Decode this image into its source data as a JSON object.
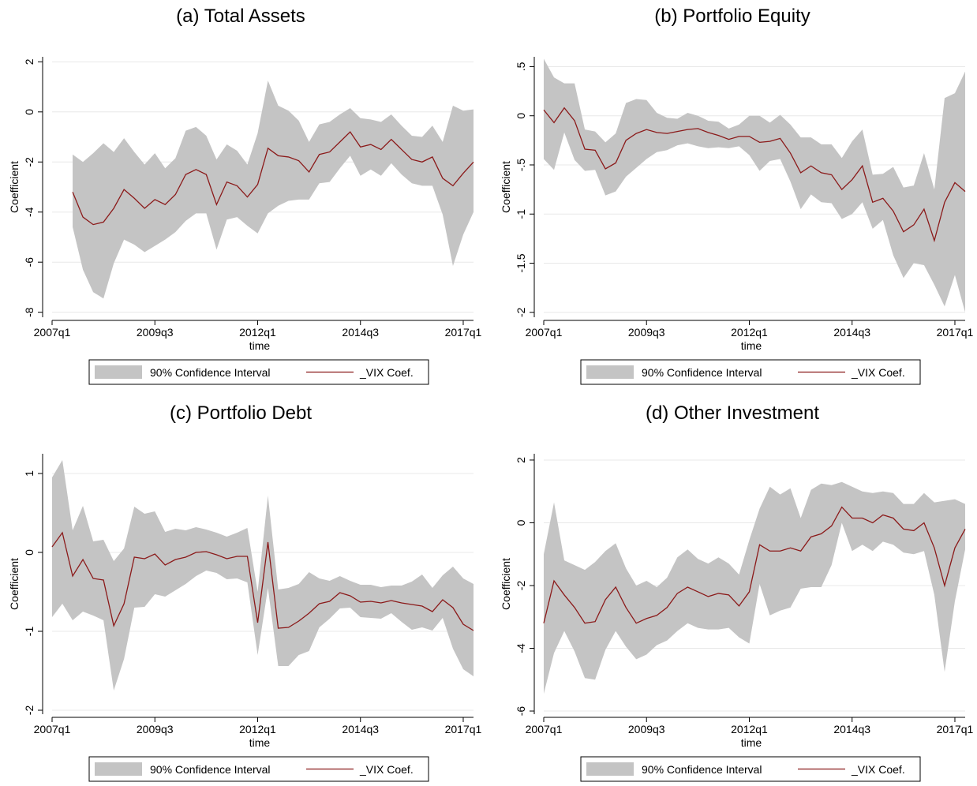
{
  "chart_data": [
    {
      "type": "line",
      "title": "(a) Total Assets",
      "x_label": "time",
      "y_label": "Coefficient",
      "x": [
        "2007q3",
        "2007q4",
        "2008q1",
        "2008q2",
        "2008q3",
        "2008q4",
        "2009q1",
        "2009q2",
        "2009q3",
        "2009q4",
        "2010q1",
        "2010q2",
        "2010q3",
        "2010q4",
        "2011q1",
        "2011q2",
        "2011q3",
        "2011q4",
        "2012q1",
        "2012q2",
        "2012q3",
        "2012q4",
        "2013q1",
        "2013q2",
        "2013q3",
        "2013q4",
        "2014q1",
        "2014q2",
        "2014q3",
        "2014q4",
        "2015q1",
        "2015q2",
        "2015q3",
        "2015q4",
        "2016q1",
        "2016q2",
        "2016q3",
        "2016q4",
        "2017q1",
        "2017q2"
      ],
      "xlim": [
        "2007q1",
        "2017q2"
      ],
      "xticks": [
        "2007q1",
        "2009q3",
        "2012q1",
        "2014q3",
        "2017q1"
      ],
      "ylim": [
        -8.2,
        2.2
      ],
      "yticks": [
        -8,
        -6,
        -4,
        -2,
        0,
        2
      ],
      "grid": true,
      "series": [
        {
          "name": "90% Confidence Interval",
          "color": "#c4c4c4",
          "upper": [
            -1.7,
            -2.0,
            -1.65,
            -1.25,
            -1.6,
            -1.05,
            -1.6,
            -2.1,
            -1.65,
            -2.25,
            -1.85,
            -0.75,
            -0.6,
            -0.95,
            -1.9,
            -1.3,
            -1.55,
            -2.1,
            -0.85,
            1.25,
            0.25,
            0.05,
            -0.35,
            -1.2,
            -0.5,
            -0.4,
            -0.1,
            0.15,
            -0.25,
            -0.3,
            -0.4,
            -0.1,
            -0.55,
            -0.95,
            -1.0,
            -0.55,
            -1.2,
            0.25,
            0.05,
            0.1
          ],
          "lower": [
            -4.6,
            -6.3,
            -7.2,
            -7.45,
            -6.05,
            -5.1,
            -5.3,
            -5.6,
            -5.35,
            -5.1,
            -4.8,
            -4.35,
            -4.05,
            -4.05,
            -5.5,
            -4.3,
            -4.2,
            -4.55,
            -4.85,
            -4.05,
            -3.75,
            -3.55,
            -3.5,
            -3.5,
            -2.85,
            -2.8,
            -2.25,
            -1.75,
            -2.55,
            -2.3,
            -2.55,
            -2.05,
            -2.5,
            -2.85,
            -2.95,
            -2.95,
            -4.1,
            -6.15,
            -4.9,
            -4.0
          ]
        },
        {
          "name": "_VIX Coef.",
          "color": "#8b1a1a",
          "values": [
            -3.2,
            -4.2,
            -4.5,
            -4.4,
            -3.85,
            -3.1,
            -3.45,
            -3.85,
            -3.5,
            -3.7,
            -3.3,
            -2.5,
            -2.3,
            -2.5,
            -3.7,
            -2.8,
            -2.95,
            -3.4,
            -2.9,
            -1.45,
            -1.75,
            -1.8,
            -1.95,
            -2.4,
            -1.7,
            -1.6,
            -1.2,
            -0.8,
            -1.4,
            -1.3,
            -1.5,
            -1.1,
            -1.5,
            -1.9,
            -2.0,
            -1.8,
            -2.65,
            -2.95,
            -2.45,
            -2.0
          ]
        }
      ]
    },
    {
      "type": "line",
      "title": "(b) Portfolio Equity",
      "x_label": "time",
      "y_label": "Coefficient",
      "x": [
        "2007q1",
        "2007q2",
        "2007q3",
        "2007q4",
        "2008q1",
        "2008q2",
        "2008q3",
        "2008q4",
        "2009q1",
        "2009q2",
        "2009q3",
        "2009q4",
        "2010q1",
        "2010q2",
        "2010q3",
        "2010q4",
        "2011q1",
        "2011q2",
        "2011q3",
        "2011q4",
        "2012q1",
        "2012q2",
        "2012q3",
        "2012q4",
        "2013q1",
        "2013q2",
        "2013q3",
        "2013q4",
        "2014q1",
        "2014q2",
        "2014q3",
        "2014q4",
        "2015q1",
        "2015q2",
        "2015q3",
        "2015q4",
        "2016q1",
        "2016q2",
        "2016q3",
        "2016q4",
        "2017q1",
        "2017q2"
      ],
      "xlim": [
        "2007q1",
        "2017q2"
      ],
      "xticks": [
        "2007q1",
        "2009q3",
        "2012q1",
        "2014q3",
        "2017q1"
      ],
      "ylim": [
        -2.05,
        0.6
      ],
      "yticks": [
        -2,
        -1.5,
        -1,
        {
          "value": -0.5,
          "label": "-.5"
        },
        0,
        {
          "value": 0.5,
          "label": ".5"
        }
      ],
      "grid": true,
      "series": [
        {
          "name": "90% Confidence Interval",
          "color": "#c4c4c4",
          "upper": [
            0.58,
            0.39,
            0.33,
            0.33,
            -0.14,
            -0.16,
            -0.27,
            -0.18,
            0.13,
            0.17,
            0.16,
            0.03,
            -0.02,
            -0.03,
            0.03,
            0.0,
            -0.05,
            -0.06,
            -0.13,
            -0.09,
            0.0,
            0.0,
            -0.07,
            0.01,
            -0.09,
            -0.22,
            -0.22,
            -0.29,
            -0.29,
            -0.43,
            -0.26,
            -0.14,
            -0.6,
            -0.59,
            -0.52,
            -0.73,
            -0.71,
            -0.38,
            -0.75,
            0.18,
            0.23,
            0.45
          ],
          "lower": [
            -0.44,
            -0.55,
            -0.17,
            -0.45,
            -0.56,
            -0.55,
            -0.81,
            -0.77,
            -0.62,
            -0.53,
            -0.44,
            -0.37,
            -0.35,
            -0.3,
            -0.28,
            -0.31,
            -0.33,
            -0.32,
            -0.33,
            -0.31,
            -0.4,
            -0.56,
            -0.46,
            -0.44,
            -0.67,
            -0.95,
            -0.8,
            -0.88,
            -0.89,
            -1.05,
            -1.0,
            -0.88,
            -1.15,
            -1.06,
            -1.42,
            -1.65,
            -1.5,
            -1.52,
            -1.72,
            -1.94,
            -1.62,
            -2.0
          ]
        },
        {
          "name": "_VIX Coef.",
          "color": "#8b1a1a",
          "values": [
            0.06,
            -0.07,
            0.08,
            -0.05,
            -0.34,
            -0.35,
            -0.54,
            -0.48,
            -0.25,
            -0.18,
            -0.14,
            -0.17,
            -0.18,
            -0.16,
            -0.14,
            -0.13,
            -0.17,
            -0.2,
            -0.24,
            -0.21,
            -0.21,
            -0.27,
            -0.26,
            -0.23,
            -0.38,
            -0.58,
            -0.51,
            -0.58,
            -0.6,
            -0.75,
            -0.65,
            -0.51,
            -0.88,
            -0.84,
            -0.97,
            -1.18,
            -1.11,
            -0.95,
            -1.27,
            -0.88,
            -0.68,
            -0.77
          ]
        }
      ]
    },
    {
      "type": "line",
      "title": "(c) Portfolio Debt",
      "x_label": "time",
      "y_label": "Coefficient",
      "x": [
        "2007q1",
        "2007q2",
        "2007q3",
        "2007q4",
        "2008q1",
        "2008q2",
        "2008q3",
        "2008q4",
        "2009q1",
        "2009q2",
        "2009q3",
        "2009q4",
        "2010q1",
        "2010q2",
        "2010q3",
        "2010q4",
        "2011q1",
        "2011q2",
        "2011q3",
        "2011q4",
        "2012q1",
        "2012q2",
        "2012q3",
        "2012q4",
        "2013q1",
        "2013q2",
        "2013q3",
        "2013q4",
        "2014q1",
        "2014q2",
        "2014q3",
        "2014q4",
        "2015q1",
        "2015q2",
        "2015q3",
        "2015q4",
        "2016q1",
        "2016q2",
        "2016q3",
        "2016q4",
        "2017q1",
        "2017q2"
      ],
      "xlim": [
        "2007q1",
        "2017q2"
      ],
      "xticks": [
        "2007q1",
        "2009q3",
        "2012q1",
        "2014q3",
        "2017q1"
      ],
      "ylim": [
        -2.05,
        1.25
      ],
      "yticks": [
        -2,
        -1,
        0,
        1
      ],
      "grid": true,
      "series": [
        {
          "name": "90% Confidence Interval",
          "color": "#c4c4c4",
          "upper": [
            0.95,
            1.17,
            0.28,
            0.59,
            0.14,
            0.16,
            -0.11,
            0.05,
            0.58,
            0.49,
            0.52,
            0.26,
            0.3,
            0.28,
            0.32,
            0.29,
            0.25,
            0.2,
            0.25,
            0.31,
            -0.5,
            0.72,
            -0.47,
            -0.45,
            -0.4,
            -0.25,
            -0.33,
            -0.36,
            -0.3,
            -0.36,
            -0.41,
            -0.41,
            -0.44,
            -0.42,
            -0.42,
            -0.37,
            -0.28,
            -0.45,
            -0.29,
            -0.18,
            -0.33,
            -0.4
          ],
          "lower": [
            -0.82,
            -0.65,
            -0.86,
            -0.75,
            -0.8,
            -0.86,
            -1.75,
            -1.35,
            -0.7,
            -0.69,
            -0.53,
            -0.56,
            -0.48,
            -0.4,
            -0.3,
            -0.23,
            -0.26,
            -0.34,
            -0.33,
            -0.38,
            -1.3,
            -0.45,
            -1.44,
            -1.44,
            -1.3,
            -1.25,
            -0.95,
            -0.84,
            -0.71,
            -0.7,
            -0.82,
            -0.83,
            -0.84,
            -0.77,
            -0.88,
            -0.98,
            -0.95,
            -0.99,
            -0.83,
            -1.22,
            -1.48,
            -1.57
          ]
        },
        {
          "name": "_VIX Coef.",
          "color": "#8b1a1a",
          "values": [
            0.07,
            0.25,
            -0.3,
            -0.09,
            -0.33,
            -0.35,
            -0.93,
            -0.65,
            -0.06,
            -0.08,
            -0.02,
            -0.16,
            -0.09,
            -0.06,
            0.0,
            0.01,
            -0.03,
            -0.08,
            -0.05,
            -0.05,
            -0.89,
            0.13,
            -0.96,
            -0.95,
            -0.87,
            -0.77,
            -0.65,
            -0.62,
            -0.51,
            -0.55,
            -0.63,
            -0.62,
            -0.64,
            -0.61,
            -0.64,
            -0.66,
            -0.68,
            -0.75,
            -0.6,
            -0.7,
            -0.91,
            -0.99
          ]
        }
      ]
    },
    {
      "type": "line",
      "title": "(d) Other Investment",
      "x_label": "time",
      "y_label": "Coefficient",
      "x": [
        "2007q1",
        "2007q2",
        "2007q3",
        "2007q4",
        "2008q1",
        "2008q2",
        "2008q3",
        "2008q4",
        "2009q1",
        "2009q2",
        "2009q3",
        "2009q4",
        "2010q1",
        "2010q2",
        "2010q3",
        "2010q4",
        "2011q1",
        "2011q2",
        "2011q3",
        "2011q4",
        "2012q1",
        "2012q2",
        "2012q3",
        "2012q4",
        "2013q1",
        "2013q2",
        "2013q3",
        "2013q4",
        "2014q1",
        "2014q2",
        "2014q3",
        "2014q4",
        "2015q1",
        "2015q2",
        "2015q3",
        "2015q4",
        "2016q1",
        "2016q2",
        "2016q3",
        "2016q4",
        "2017q1",
        "2017q2"
      ],
      "xlim": [
        "2007q1",
        "2017q2"
      ],
      "xticks": [
        "2007q1",
        "2009q3",
        "2012q1",
        "2014q3",
        "2017q1"
      ],
      "ylim": [
        -6.1,
        2.2
      ],
      "yticks": [
        -6,
        -4,
        -2,
        0,
        2
      ],
      "grid": true,
      "series": [
        {
          "name": "90% Confidence Interval",
          "color": "#c4c4c4",
          "upper": [
            -1.0,
            0.65,
            -1.2,
            -1.35,
            -1.5,
            -1.25,
            -0.9,
            -0.65,
            -1.45,
            -2.0,
            -1.85,
            -2.05,
            -1.75,
            -1.1,
            -0.85,
            -1.15,
            -1.3,
            -1.1,
            -1.3,
            -1.65,
            -0.55,
            0.45,
            1.15,
            0.9,
            1.1,
            0.15,
            1.05,
            1.25,
            1.2,
            1.3,
            1.15,
            1.0,
            0.95,
            1.0,
            0.95,
            0.6,
            0.6,
            0.95,
            0.65,
            0.7,
            0.75,
            0.6
          ],
          "lower": [
            -5.45,
            -4.15,
            -3.45,
            -4.1,
            -4.95,
            -5.0,
            -4.05,
            -3.45,
            -3.95,
            -4.35,
            -4.2,
            -3.9,
            -3.75,
            -3.45,
            -3.2,
            -3.35,
            -3.4,
            -3.4,
            -3.35,
            -3.65,
            -3.85,
            -1.95,
            -2.95,
            -2.8,
            -2.7,
            -2.1,
            -2.05,
            -2.05,
            -1.35,
            0.0,
            -0.9,
            -0.7,
            -0.9,
            -0.6,
            -0.7,
            -0.95,
            -1.0,
            -0.9,
            -2.3,
            -4.75,
            -2.5,
            -0.85
          ]
        },
        {
          "name": "_VIX Coef.",
          "color": "#8b1a1a",
          "values": [
            -3.2,
            -1.85,
            -2.3,
            -2.7,
            -3.2,
            -3.15,
            -2.45,
            -2.05,
            -2.7,
            -3.2,
            -3.05,
            -2.95,
            -2.7,
            -2.25,
            -2.05,
            -2.2,
            -2.35,
            -2.25,
            -2.3,
            -2.65,
            -2.2,
            -0.7,
            -0.9,
            -0.9,
            -0.8,
            -0.9,
            -0.45,
            -0.35,
            -0.1,
            0.5,
            0.15,
            0.15,
            0.0,
            0.25,
            0.15,
            -0.2,
            -0.25,
            0.0,
            -0.8,
            -2.0,
            -0.8,
            -0.2
          ]
        }
      ]
    }
  ]
}
